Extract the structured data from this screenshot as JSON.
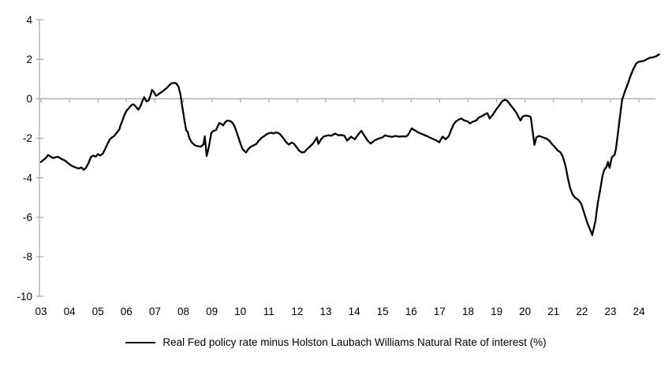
{
  "legend": {
    "label": "Real Fed policy rate minus Holston Laubach Williams Natural Rate of interest (%)",
    "swatch_color": "#000000"
  },
  "chart_data": {
    "type": "line",
    "title": "",
    "xlabel": "",
    "ylabel": "",
    "ylim": [
      -10,
      4
    ],
    "xlim": [
      2002.95,
      2025.0
    ],
    "grid": false,
    "zero_line": true,
    "legend_position": "bottom",
    "axis_color": "#a6a6a6",
    "line_color": "#000000",
    "y_ticks": [
      4,
      2,
      0,
      -2,
      -4,
      -6,
      -8,
      -10
    ],
    "x_tick_years": [
      2003,
      2004,
      2005,
      2006,
      2007,
      2008,
      2009,
      2010,
      2011,
      2012,
      2013,
      2014,
      2015,
      2016,
      2017,
      2018,
      2019,
      2020,
      2021,
      2022,
      2023,
      2024
    ],
    "x_tick_labels": [
      "03",
      "04",
      "05",
      "06",
      "07",
      "08",
      "09",
      "10",
      "11",
      "12",
      "13",
      "14",
      "15",
      "16",
      "17",
      "18",
      "19",
      "20",
      "21",
      "22",
      "23",
      "24"
    ],
    "series": [
      {
        "name": "Real Fed policy rate minus Holston Laubach Williams Natural Rate of interest (%)",
        "color": "#000000",
        "points": [
          [
            2003.0,
            -3.2
          ],
          [
            2003.08,
            -3.1
          ],
          [
            2003.17,
            -3.0
          ],
          [
            2003.25,
            -2.85
          ],
          [
            2003.33,
            -2.92
          ],
          [
            2003.42,
            -3.0
          ],
          [
            2003.5,
            -2.97
          ],
          [
            2003.58,
            -2.93
          ],
          [
            2003.67,
            -3.0
          ],
          [
            2003.75,
            -3.07
          ],
          [
            2003.83,
            -3.12
          ],
          [
            2003.92,
            -3.22
          ],
          [
            2004.0,
            -3.32
          ],
          [
            2004.08,
            -3.4
          ],
          [
            2004.17,
            -3.45
          ],
          [
            2004.25,
            -3.5
          ],
          [
            2004.33,
            -3.53
          ],
          [
            2004.42,
            -3.48
          ],
          [
            2004.5,
            -3.6
          ],
          [
            2004.58,
            -3.5
          ],
          [
            2004.67,
            -3.25
          ],
          [
            2004.75,
            -2.95
          ],
          [
            2004.83,
            -2.87
          ],
          [
            2004.92,
            -2.93
          ],
          [
            2005.0,
            -2.8
          ],
          [
            2005.08,
            -2.87
          ],
          [
            2005.17,
            -2.78
          ],
          [
            2005.25,
            -2.55
          ],
          [
            2005.33,
            -2.3
          ],
          [
            2005.42,
            -2.05
          ],
          [
            2005.5,
            -1.95
          ],
          [
            2005.58,
            -1.87
          ],
          [
            2005.67,
            -1.7
          ],
          [
            2005.75,
            -1.55
          ],
          [
            2005.8,
            -1.3
          ],
          [
            2005.85,
            -1.15
          ],
          [
            2005.92,
            -0.85
          ],
          [
            2006.0,
            -0.62
          ],
          [
            2006.08,
            -0.48
          ],
          [
            2006.17,
            -0.33
          ],
          [
            2006.25,
            -0.28
          ],
          [
            2006.33,
            -0.4
          ],
          [
            2006.42,
            -0.55
          ],
          [
            2006.5,
            -0.35
          ],
          [
            2006.55,
            -0.15
          ],
          [
            2006.62,
            0.08
          ],
          [
            2006.7,
            -0.13
          ],
          [
            2006.78,
            -0.08
          ],
          [
            2006.85,
            0.2
          ],
          [
            2006.9,
            0.45
          ],
          [
            2006.96,
            0.35
          ],
          [
            2007.04,
            0.15
          ],
          [
            2007.1,
            0.2
          ],
          [
            2007.17,
            0.28
          ],
          [
            2007.25,
            0.35
          ],
          [
            2007.33,
            0.45
          ],
          [
            2007.42,
            0.55
          ],
          [
            2007.5,
            0.68
          ],
          [
            2007.58,
            0.78
          ],
          [
            2007.67,
            0.8
          ],
          [
            2007.75,
            0.78
          ],
          [
            2007.83,
            0.6
          ],
          [
            2007.9,
            0.2
          ],
          [
            2007.96,
            -0.4
          ],
          [
            2008.04,
            -1.1
          ],
          [
            2008.1,
            -1.6
          ],
          [
            2008.15,
            -1.67
          ],
          [
            2008.21,
            -2.0
          ],
          [
            2008.29,
            -2.2
          ],
          [
            2008.4,
            -2.35
          ],
          [
            2008.5,
            -2.4
          ],
          [
            2008.62,
            -2.42
          ],
          [
            2008.71,
            -2.3
          ],
          [
            2008.75,
            -1.9
          ],
          [
            2008.82,
            -2.9
          ],
          [
            2008.9,
            -2.4
          ],
          [
            2008.98,
            -1.72
          ],
          [
            2009.06,
            -1.62
          ],
          [
            2009.15,
            -1.58
          ],
          [
            2009.26,
            -1.22
          ],
          [
            2009.33,
            -1.28
          ],
          [
            2009.4,
            -1.35
          ],
          [
            2009.47,
            -1.18
          ],
          [
            2009.55,
            -1.1
          ],
          [
            2009.63,
            -1.12
          ],
          [
            2009.7,
            -1.18
          ],
          [
            2009.78,
            -1.35
          ],
          [
            2009.85,
            -1.6
          ],
          [
            2009.92,
            -1.9
          ],
          [
            2010.0,
            -2.25
          ],
          [
            2010.08,
            -2.55
          ],
          [
            2010.15,
            -2.65
          ],
          [
            2010.2,
            -2.72
          ],
          [
            2010.28,
            -2.55
          ],
          [
            2010.35,
            -2.45
          ],
          [
            2010.45,
            -2.37
          ],
          [
            2010.55,
            -2.3
          ],
          [
            2010.65,
            -2.12
          ],
          [
            2010.75,
            -1.97
          ],
          [
            2010.85,
            -1.88
          ],
          [
            2010.92,
            -1.8
          ],
          [
            2011.0,
            -1.75
          ],
          [
            2011.08,
            -1.72
          ],
          [
            2011.17,
            -1.76
          ],
          [
            2011.25,
            -1.7
          ],
          [
            2011.33,
            -1.73
          ],
          [
            2011.4,
            -1.8
          ],
          [
            2011.5,
            -1.98
          ],
          [
            2011.6,
            -2.18
          ],
          [
            2011.7,
            -2.32
          ],
          [
            2011.8,
            -2.22
          ],
          [
            2011.88,
            -2.27
          ],
          [
            2012.0,
            -2.5
          ],
          [
            2012.08,
            -2.65
          ],
          [
            2012.17,
            -2.72
          ],
          [
            2012.25,
            -2.7
          ],
          [
            2012.33,
            -2.57
          ],
          [
            2012.44,
            -2.42
          ],
          [
            2012.53,
            -2.3
          ],
          [
            2012.61,
            -2.15
          ],
          [
            2012.69,
            -1.95
          ],
          [
            2012.74,
            -2.28
          ],
          [
            2012.83,
            -2.07
          ],
          [
            2012.92,
            -1.92
          ],
          [
            2013.0,
            -1.88
          ],
          [
            2013.1,
            -1.85
          ],
          [
            2013.2,
            -1.87
          ],
          [
            2013.33,
            -1.76
          ],
          [
            2013.45,
            -1.85
          ],
          [
            2013.55,
            -1.83
          ],
          [
            2013.66,
            -1.88
          ],
          [
            2013.75,
            -2.12
          ],
          [
            2013.89,
            -1.92
          ],
          [
            2014.02,
            -2.05
          ],
          [
            2014.12,
            -1.85
          ],
          [
            2014.25,
            -1.62
          ],
          [
            2014.35,
            -1.85
          ],
          [
            2014.49,
            -2.15
          ],
          [
            2014.58,
            -2.27
          ],
          [
            2014.71,
            -2.12
          ],
          [
            2014.85,
            -2.02
          ],
          [
            2015.0,
            -1.95
          ],
          [
            2015.08,
            -1.85
          ],
          [
            2015.2,
            -1.9
          ],
          [
            2015.33,
            -1.93
          ],
          [
            2015.45,
            -1.88
          ],
          [
            2015.58,
            -1.92
          ],
          [
            2015.7,
            -1.9
          ],
          [
            2015.8,
            -1.92
          ],
          [
            2015.88,
            -1.85
          ],
          [
            2016.02,
            -1.5
          ],
          [
            2016.13,
            -1.6
          ],
          [
            2016.24,
            -1.7
          ],
          [
            2016.4,
            -1.8
          ],
          [
            2016.57,
            -1.9
          ],
          [
            2016.74,
            -2.02
          ],
          [
            2016.87,
            -2.1
          ],
          [
            2016.99,
            -2.2
          ],
          [
            2017.1,
            -1.92
          ],
          [
            2017.21,
            -2.05
          ],
          [
            2017.32,
            -1.9
          ],
          [
            2017.4,
            -1.6
          ],
          [
            2017.49,
            -1.3
          ],
          [
            2017.57,
            -1.15
          ],
          [
            2017.68,
            -1.05
          ],
          [
            2017.76,
            -1.0
          ],
          [
            2017.87,
            -1.1
          ],
          [
            2017.99,
            -1.15
          ],
          [
            2018.07,
            -1.25
          ],
          [
            2018.18,
            -1.15
          ],
          [
            2018.29,
            -1.1
          ],
          [
            2018.37,
            -0.95
          ],
          [
            2018.48,
            -0.88
          ],
          [
            2018.57,
            -0.8
          ],
          [
            2018.68,
            -0.73
          ],
          [
            2018.76,
            -1.0
          ],
          [
            2018.87,
            -0.8
          ],
          [
            2018.98,
            -0.55
          ],
          [
            2019.09,
            -0.35
          ],
          [
            2019.2,
            -0.12
          ],
          [
            2019.29,
            -0.05
          ],
          [
            2019.37,
            -0.1
          ],
          [
            2019.48,
            -0.3
          ],
          [
            2019.59,
            -0.5
          ],
          [
            2019.7,
            -0.72
          ],
          [
            2019.78,
            -0.95
          ],
          [
            2019.84,
            -1.1
          ],
          [
            2019.92,
            -0.9
          ],
          [
            2020.01,
            -0.85
          ],
          [
            2020.12,
            -0.87
          ],
          [
            2020.2,
            -0.92
          ],
          [
            2020.33,
            -2.33
          ],
          [
            2020.4,
            -1.95
          ],
          [
            2020.5,
            -1.88
          ],
          [
            2020.62,
            -1.95
          ],
          [
            2020.75,
            -2.02
          ],
          [
            2020.85,
            -2.12
          ],
          [
            2020.95,
            -2.3
          ],
          [
            2021.05,
            -2.45
          ],
          [
            2021.15,
            -2.62
          ],
          [
            2021.25,
            -2.72
          ],
          [
            2021.33,
            -2.95
          ],
          [
            2021.42,
            -3.4
          ],
          [
            2021.5,
            -4.0
          ],
          [
            2021.58,
            -4.5
          ],
          [
            2021.67,
            -4.85
          ],
          [
            2021.75,
            -5.0
          ],
          [
            2021.86,
            -5.1
          ],
          [
            2021.97,
            -5.3
          ],
          [
            2022.08,
            -5.8
          ],
          [
            2022.19,
            -6.3
          ],
          [
            2022.28,
            -6.6
          ],
          [
            2022.36,
            -6.9
          ],
          [
            2022.47,
            -6.2
          ],
          [
            2022.55,
            -5.3
          ],
          [
            2022.64,
            -4.6
          ],
          [
            2022.72,
            -3.9
          ],
          [
            2022.78,
            -3.6
          ],
          [
            2022.86,
            -3.45
          ],
          [
            2022.91,
            -3.2
          ],
          [
            2022.97,
            -3.5
          ],
          [
            2023.05,
            -2.95
          ],
          [
            2023.14,
            -2.85
          ],
          [
            2023.19,
            -2.55
          ],
          [
            2023.25,
            -1.9
          ],
          [
            2023.3,
            -1.3
          ],
          [
            2023.36,
            -0.6
          ],
          [
            2023.41,
            -0.05
          ],
          [
            2023.5,
            0.35
          ],
          [
            2023.61,
            0.75
          ],
          [
            2023.69,
            1.1
          ],
          [
            2023.8,
            1.5
          ],
          [
            2023.91,
            1.8
          ],
          [
            2024.0,
            1.88
          ],
          [
            2024.11,
            1.9
          ],
          [
            2024.19,
            1.93
          ],
          [
            2024.27,
            2.0
          ],
          [
            2024.38,
            2.08
          ],
          [
            2024.49,
            2.1
          ],
          [
            2024.6,
            2.15
          ],
          [
            2024.71,
            2.25
          ]
        ]
      }
    ]
  }
}
